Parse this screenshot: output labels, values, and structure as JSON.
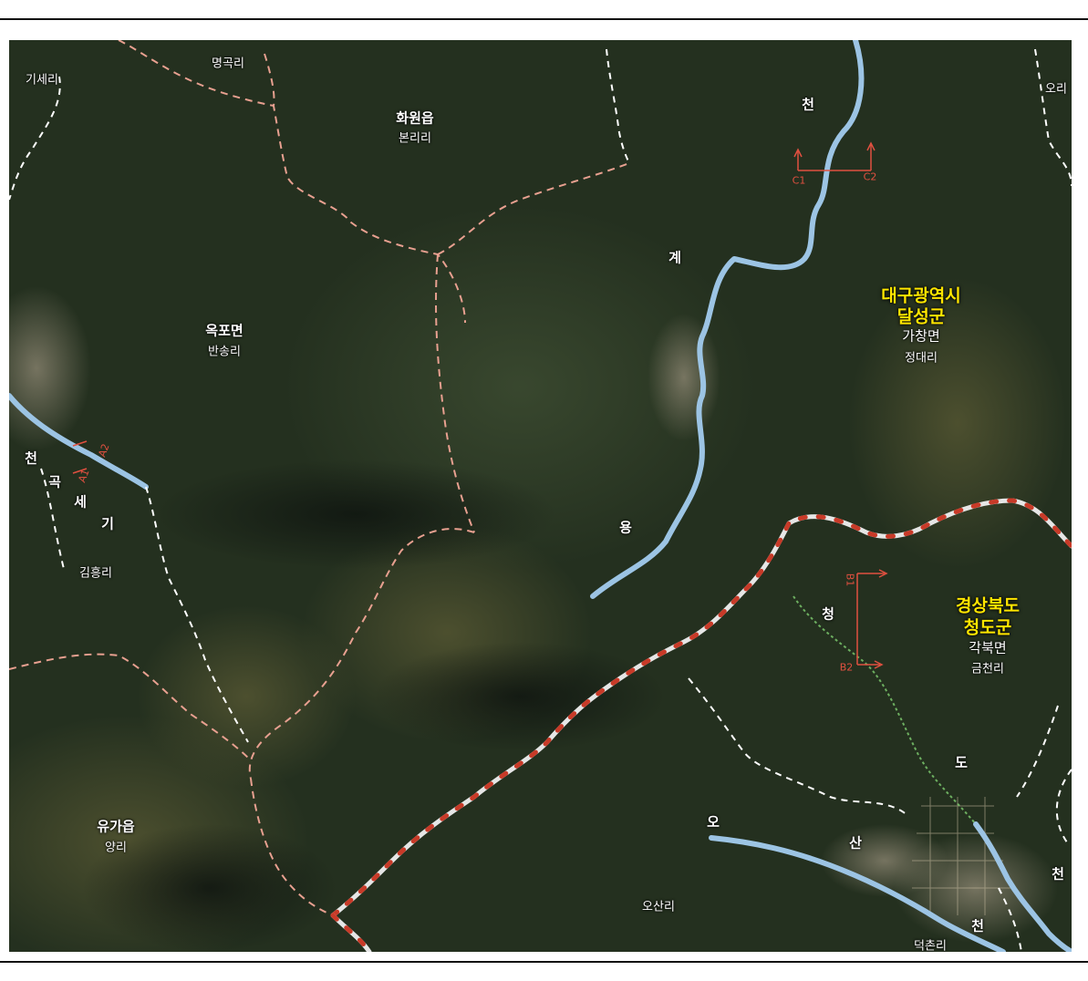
{
  "labels": {
    "gisae_ri": "기세리",
    "myeonggok_ri": "명곡리",
    "ori": "오리",
    "hwawon_eup": "화원읍",
    "bonri_ri": "본리리",
    "okpo_myeon": "옥포면",
    "bansong_ri": "반송리",
    "daegu": "대구광역시",
    "dalseong": "달성군",
    "gachang": "가창면",
    "jeongdae_ri": "정대리",
    "gimheung_ri": "김흥리",
    "gyeongbuk": "경상북도",
    "cheongdo": "청도군",
    "gakbuk": "각북면",
    "geumcheon_ri": "금천리",
    "yuga_eup": "유가읍",
    "yang_ri": "양리",
    "osan_ri": "오산리",
    "deokchon_ri": "덕촌리"
  },
  "streams": {
    "yonggye": [
      "천",
      "계",
      "용"
    ],
    "gisegok": [
      "천",
      "곡",
      "세",
      "기"
    ],
    "cheongdo": [
      "청",
      "도",
      "천"
    ],
    "osan": [
      "오",
      "산",
      "천"
    ]
  },
  "section_markers": [
    "C1",
    "C2",
    "A1",
    "A2",
    "B1",
    "B2"
  ],
  "colors": {
    "admin_boundary": "#e8a090",
    "province_boundary": "#c83a28",
    "local_boundary": "#ffffff",
    "stream": "#9cc4e4",
    "label_highlight": "#ffe600"
  }
}
